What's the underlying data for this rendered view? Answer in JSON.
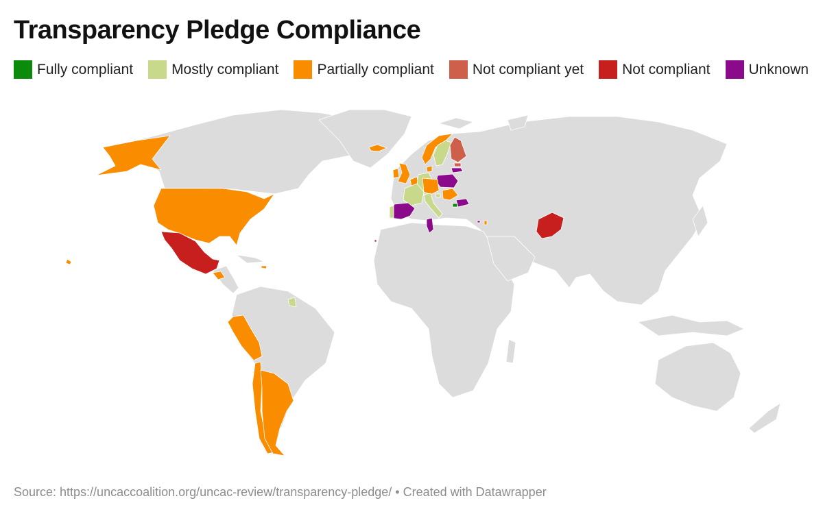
{
  "title": "Transparency Pledge Compliance",
  "legend": {
    "items": [
      {
        "key": "fully",
        "label": "Fully compliant",
        "color": "#0b8a0b"
      },
      {
        "key": "mostly",
        "label": "Mostly compliant",
        "color": "#c8d98c"
      },
      {
        "key": "partially",
        "label": "Partially compliant",
        "color": "#fa8c00"
      },
      {
        "key": "not_yet",
        "label": "Not compliant yet",
        "color": "#cd5f4b"
      },
      {
        "key": "not",
        "label": "Not compliant",
        "color": "#c71e1e"
      },
      {
        "key": "unknown",
        "label": "Unknown",
        "color": "#8b0a8b"
      }
    ]
  },
  "map": {
    "base_color": "#dcdcdc",
    "border_color": "#ffffff"
  },
  "source": {
    "text": "Source: https://uncaccoalition.org/uncac-review/transparency-pledge/ • Created with Datawrapper"
  }
}
